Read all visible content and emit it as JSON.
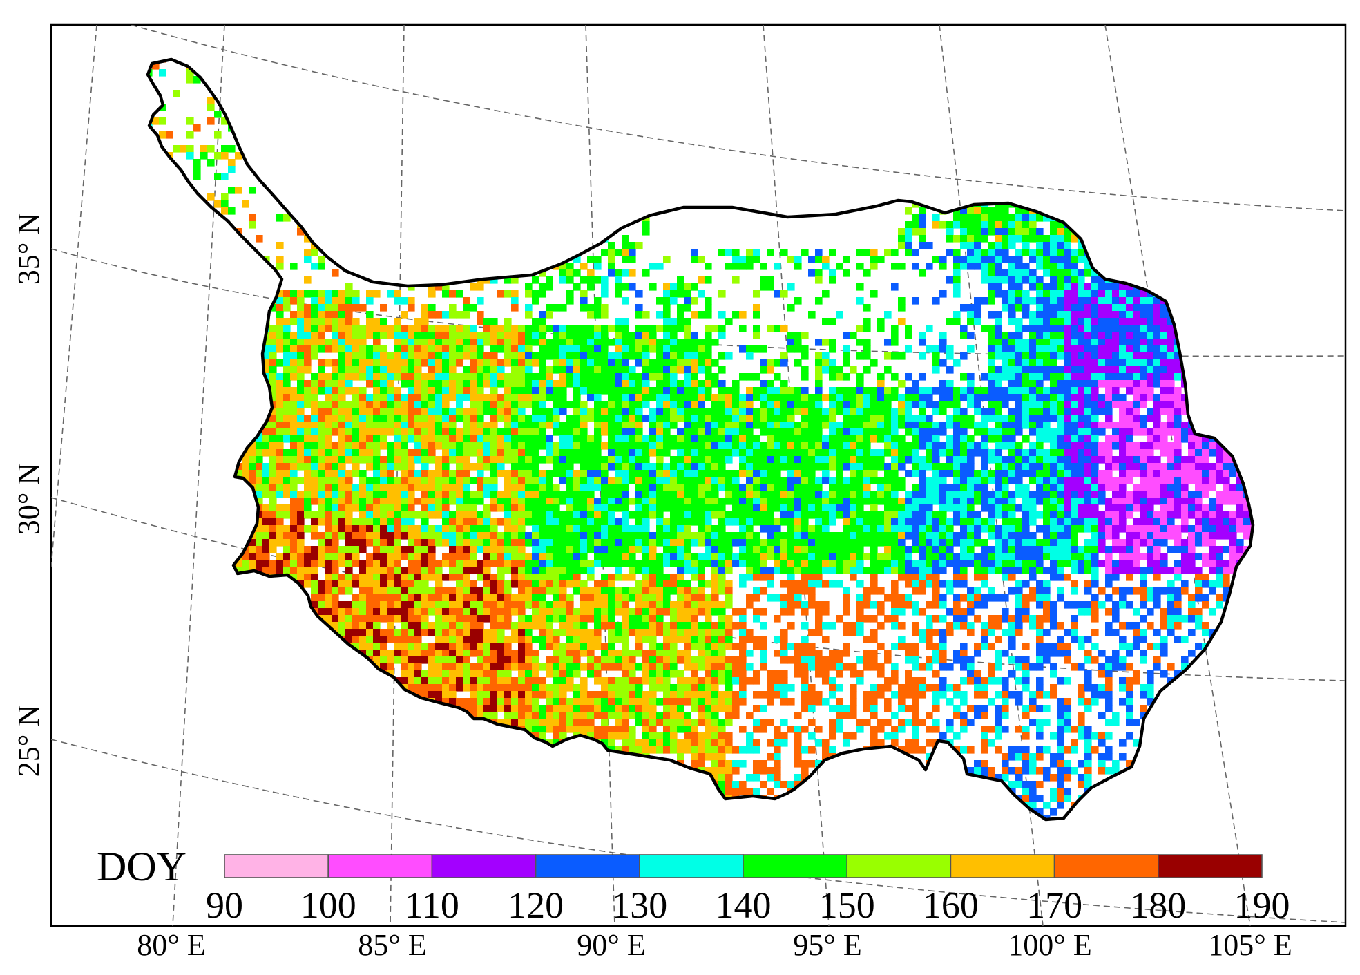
{
  "latitude_labels": [
    "35° N",
    "30° N",
    "25° N"
  ],
  "longitude_labels": [
    "80° E",
    "85° E",
    "90° E",
    "95° E",
    "100° E",
    "105° E"
  ],
  "legend": {
    "title": "DOY",
    "ticks": [
      "90",
      "100",
      "110",
      "120",
      "130",
      "140",
      "150",
      "160",
      "170",
      "180",
      "190"
    ],
    "bins": [
      {
        "from": 90,
        "to": 100,
        "color": "#ffb3e6"
      },
      {
        "from": 100,
        "to": 110,
        "color": "#ff4dff"
      },
      {
        "from": 110,
        "to": 120,
        "color": "#a300ff"
      },
      {
        "from": 120,
        "to": 130,
        "color": "#0a5cff"
      },
      {
        "from": 130,
        "to": 140,
        "color": "#00ffe6"
      },
      {
        "from": 140,
        "to": 150,
        "color": "#00ff00"
      },
      {
        "from": 150,
        "to": 160,
        "color": "#99ff00"
      },
      {
        "from": 160,
        "to": 170,
        "color": "#ffbf00"
      },
      {
        "from": 170,
        "to": 180,
        "color": "#ff6600"
      },
      {
        "from": 180,
        "to": 190,
        "color": "#990000"
      }
    ]
  },
  "colors": {
    "outline": "#000000",
    "graticule": "#666666",
    "background": "#ffffff"
  }
}
